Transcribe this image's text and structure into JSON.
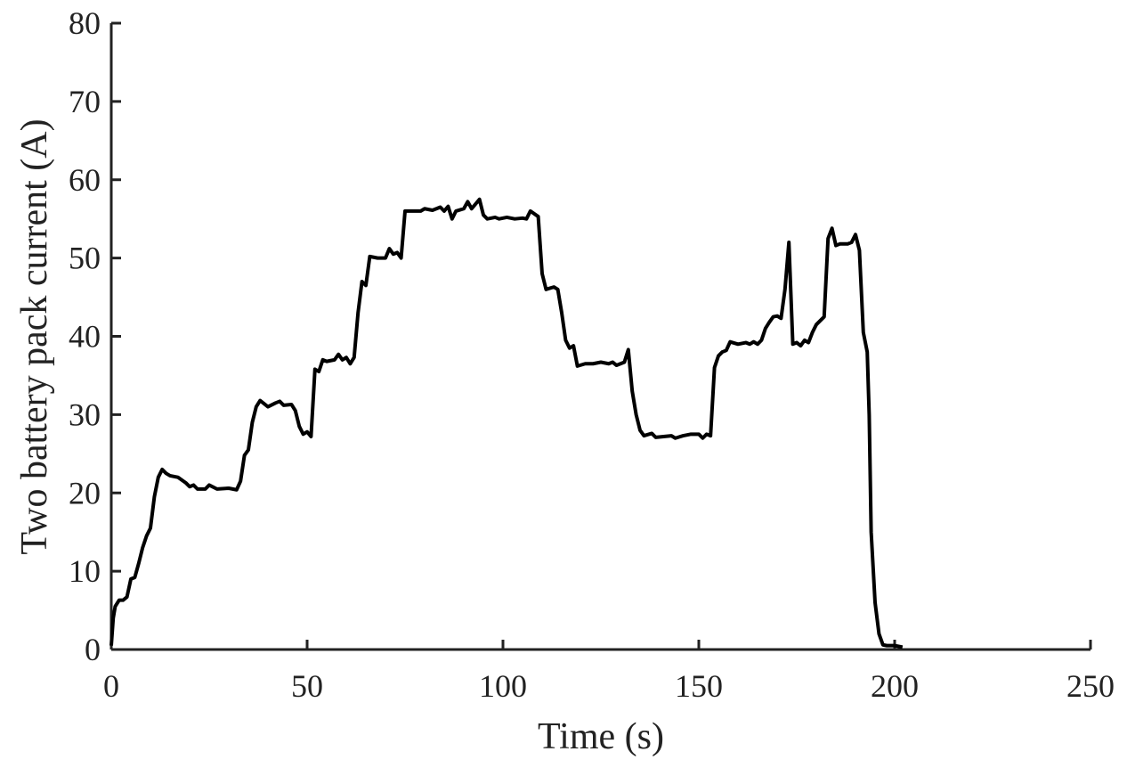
{
  "chart_data": {
    "type": "line",
    "x_label": "Time (s)",
    "y_label": "Two battery pack current (A)",
    "x": [
      0,
      0.5,
      1,
      2,
      3,
      4,
      5,
      6,
      7,
      8,
      9,
      10,
      11,
      12,
      13,
      14,
      15,
      17,
      19,
      20,
      21,
      22,
      24,
      25,
      27,
      30,
      32,
      33,
      34,
      35,
      36,
      37,
      38,
      40,
      42,
      43,
      44,
      46,
      47,
      48,
      49,
      50,
      51,
      52,
      53,
      54,
      55,
      57,
      58,
      59,
      60,
      61,
      62,
      63,
      64,
      65,
      66,
      68,
      70,
      71,
      72,
      73,
      74,
      75,
      77,
      79,
      80,
      82,
      84,
      85,
      86,
      87,
      88,
      90,
      91,
      92,
      94,
      95,
      96,
      98,
      99,
      101,
      103,
      105,
      106,
      107,
      109,
      110,
      111,
      113,
      114,
      115,
      116,
      117,
      118,
      119,
      121,
      123,
      125,
      127,
      128,
      129,
      131,
      132,
      133,
      134,
      135,
      136,
      138,
      139,
      141,
      143,
      144,
      146,
      148,
      150,
      151,
      152,
      153,
      154,
      155,
      156,
      157,
      158,
      160,
      162,
      163,
      164,
      165,
      166,
      167,
      168,
      169,
      170,
      171,
      172,
      173,
      174,
      175,
      176,
      177,
      178,
      179,
      180,
      182,
      183,
      184,
      185,
      186,
      188,
      189,
      190,
      191,
      192,
      193,
      193.5,
      194,
      195,
      196,
      197,
      198,
      200,
      202
    ],
    "series": [
      {
        "color": "#000000",
        "values": [
          0.5,
          4,
          5.5,
          6.3,
          6.3,
          6.7,
          9,
          9.2,
          11,
          13,
          14.5,
          15.5,
          19.5,
          22,
          23,
          22.5,
          22.2,
          22,
          21.3,
          20.8,
          21,
          20.5,
          20.5,
          21,
          20.5,
          20.6,
          20.4,
          21.5,
          24.8,
          25.5,
          29,
          31,
          31.8,
          31,
          31.5,
          31.7,
          31.2,
          31.3,
          30.5,
          28.5,
          27.5,
          27.8,
          27.2,
          35.8,
          35.5,
          37,
          36.8,
          37,
          37.7,
          37,
          37.3,
          36.5,
          37.3,
          43,
          47,
          46.5,
          50.2,
          50,
          50,
          51.2,
          50.5,
          50.7,
          50,
          56,
          56,
          56,
          56.3,
          56.1,
          56.5,
          56,
          56.6,
          55,
          56,
          56.3,
          57.2,
          56.3,
          57.5,
          55.5,
          55,
          55.2,
          55,
          55.2,
          55,
          55.1,
          55,
          56,
          55.3,
          48,
          46,
          46.3,
          46,
          43,
          39.5,
          38.5,
          38.8,
          36.2,
          36.5,
          36.5,
          36.7,
          36.5,
          36.7,
          36.3,
          36.7,
          38.3,
          33,
          30,
          28,
          27.3,
          27.6,
          27.1,
          27.2,
          27.3,
          27,
          27.3,
          27.5,
          27.5,
          27,
          27.5,
          27.3,
          36,
          37.5,
          38,
          38.2,
          39.3,
          39,
          39.2,
          39,
          39.3,
          39,
          39.5,
          41,
          41.8,
          42.5,
          42.6,
          42.3,
          46,
          52,
          39,
          39.2,
          38.8,
          39.5,
          39.2,
          40.5,
          41.5,
          42.5,
          52.5,
          53.8,
          51.6,
          51.8,
          51.8,
          52,
          53,
          51,
          40.5,
          38,
          30,
          15,
          6,
          2,
          0.6,
          0.5,
          0.5,
          0.3
        ]
      }
    ],
    "xlim": [
      0,
      250
    ],
    "xticks": [
      0,
      50,
      100,
      150,
      200,
      250
    ],
    "ylim": [
      0,
      80
    ],
    "yticks": [
      0,
      10,
      20,
      30,
      40,
      50,
      60,
      70,
      80
    ]
  }
}
